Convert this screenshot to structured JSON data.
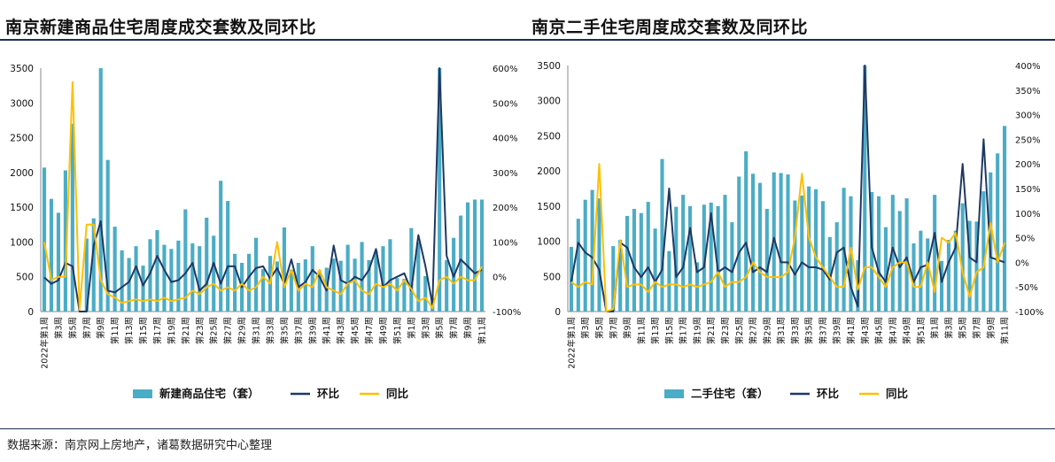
{
  "page": {
    "source": "数据来源：南京网上房地产，诸葛数据研究中心整理"
  },
  "colors": {
    "bar": "#4bacc6",
    "mom": "#1f3864",
    "yoy": "#ffc000",
    "text": "#111111"
  },
  "chart_data": [
    {
      "type": "bar",
      "title": "南京新建商品住宅周度成交套数及同环比",
      "x_labels": [
        "2022年第1周",
        "第3周",
        "第5周",
        "第7周",
        "第9周",
        "第11周",
        "第13周",
        "第15周",
        "第17周",
        "第19周",
        "第21周",
        "第23周",
        "第25周",
        "第27周",
        "第29周",
        "第31周",
        "第33周",
        "第35周",
        "第37周",
        "第39周",
        "第41周",
        "第43周",
        "第45周",
        "第47周",
        "第49周",
        "第51周",
        "第1周",
        "第3周",
        "第5周",
        "第7周",
        "第9周",
        "第11周"
      ],
      "categories_count": 63,
      "ylim_left": [
        0,
        3500
      ],
      "yticks_left": [
        "0",
        "500",
        "1000",
        "1500",
        "2000",
        "2500",
        "3000",
        "3500"
      ],
      "ylim_right": [
        -100,
        600
      ],
      "yticks_right": [
        "-100%",
        "0%",
        "100%",
        "200%",
        "300%",
        "400%",
        "500%",
        "600%"
      ],
      "legend": [
        "新建商品住宅（套）",
        "环比",
        "同比"
      ],
      "legend_position": "bottom",
      "series": [
        {
          "name": "新建商品住宅（套）",
          "kind": "bar",
          "axis": "left",
          "values": [
            2070,
            1620,
            1420,
            2030,
            2700,
            0,
            1050,
            1340,
            3500,
            2180,
            1220,
            880,
            770,
            940,
            660,
            1040,
            1170,
            960,
            900,
            1020,
            1470,
            980,
            940,
            1350,
            1090,
            1880,
            1590,
            830,
            700,
            830,
            1060,
            610,
            800,
            720,
            1210,
            600,
            700,
            750,
            940,
            590,
            630,
            760,
            730,
            960,
            760,
            1000,
            740,
            870,
            940,
            1040,
            480,
            470,
            1200,
            1000,
            510,
            190,
            3500,
            740,
            1060,
            1380,
            1570,
            1610,
            1610
          ]
        },
        {
          "name": "环比",
          "kind": "line",
          "axis": "right",
          "values": [
            -2,
            -20,
            -10,
            40,
            30,
            -100,
            -100,
            90,
            160,
            -40,
            -45,
            -30,
            -15,
            30,
            -25,
            10,
            60,
            20,
            -15,
            -10,
            10,
            40,
            -40,
            -20,
            40,
            -20,
            30,
            30,
            -30,
            0,
            25,
            30,
            -5,
            25,
            -20,
            50,
            -30,
            -15,
            20,
            0,
            -40,
            90,
            -10,
            -20,
            0,
            -10,
            20,
            80,
            -30,
            -10,
            0,
            10,
            -40,
            120,
            30,
            -80,
            600,
            60,
            0,
            50,
            30,
            10,
            20
          ]
        },
        {
          "name": "同比",
          "kind": "line",
          "axis": "right",
          "values": [
            100,
            -10,
            0,
            0,
            560,
            -95,
            150,
            150,
            -10,
            -50,
            -60,
            -75,
            -70,
            -65,
            -70,
            -65,
            -70,
            -60,
            -70,
            -65,
            -60,
            -40,
            -50,
            -30,
            -20,
            -40,
            -30,
            -40,
            -20,
            -40,
            -30,
            0,
            -20,
            100,
            -30,
            20,
            -40,
            -20,
            -30,
            20,
            -30,
            -40,
            -50,
            -20,
            -10,
            -40,
            -50,
            -20,
            -30,
            -20,
            -40,
            -10,
            -35,
            -70,
            -60,
            -90,
            -10,
            0,
            -20,
            0,
            -10,
            -10,
            30
          ]
        }
      ]
    },
    {
      "type": "bar",
      "title": "南京二手住宅周度成交套数及同环比",
      "x_labels": [
        "2022年第1周",
        "第3周",
        "第5周",
        "第7周",
        "第9周",
        "第11周",
        "第13周",
        "第15周",
        "第17周",
        "第19周",
        "第21周",
        "第23周",
        "第25周",
        "第27周",
        "第29周",
        "第31周",
        "第33周",
        "第35周",
        "第37周",
        "第39周",
        "第41周",
        "第43周",
        "第45周",
        "第47周",
        "第49周",
        "第51周",
        "第1周",
        "第3周",
        "第5周",
        "第7周",
        "第9周",
        "第11周"
      ],
      "categories_count": 63,
      "ylim_left": [
        0,
        3500
      ],
      "yticks_left": [
        "0",
        "500",
        "1000",
        "1500",
        "2000",
        "2500",
        "3000",
        "3500"
      ],
      "ylim_right": [
        -100,
        400
      ],
      "yticks_right": [
        "-100%",
        "-50%",
        "0%",
        "50%",
        "100%",
        "150%",
        "200%",
        "250%",
        "300%",
        "350%",
        "400%"
      ],
      "legend": [
        "二手住宅（套）",
        "环比",
        "同比"
      ],
      "legend_position": "bottom",
      "series": [
        {
          "name": "二手住宅（套）",
          "kind": "bar",
          "axis": "left",
          "values": [
            920,
            1320,
            1590,
            1730,
            1610,
            0,
            930,
            1020,
            1360,
            1460,
            1400,
            1560,
            1180,
            2170,
            860,
            1490,
            1660,
            1500,
            700,
            1520,
            1550,
            1500,
            1660,
            1270,
            1920,
            2280,
            1960,
            1830,
            1460,
            1980,
            1970,
            1950,
            1580,
            1650,
            1780,
            1740,
            1570,
            1060,
            1270,
            1760,
            1640,
            730,
            3500,
            1700,
            1640,
            1200,
            1660,
            1430,
            1610,
            970,
            1150,
            1040,
            1660,
            720,
            1020,
            1150,
            1540,
            1290,
            1280,
            1710,
            1980,
            2250,
            2640
          ]
        },
        {
          "name": "环比",
          "kind": "line",
          "axis": "right",
          "values": [
            -40,
            40,
            20,
            10,
            -15,
            -100,
            -100,
            40,
            30,
            -10,
            -30,
            -10,
            -40,
            -15,
            150,
            -30,
            -10,
            70,
            -20,
            -10,
            100,
            -20,
            -10,
            -20,
            20,
            40,
            -20,
            -10,
            -20,
            50,
            0,
            0,
            -25,
            0,
            -10,
            -10,
            -15,
            -35,
            20,
            30,
            -50,
            -90,
            400,
            30,
            -20,
            -40,
            30,
            -10,
            10,
            -40,
            -10,
            -5,
            60,
            -40,
            0,
            30,
            200,
            10,
            0,
            250,
            10,
            5,
            0
          ]
        },
        {
          "name": "同比",
          "kind": "line",
          "axis": "right",
          "values": [
            -40,
            -50,
            -40,
            -45,
            200,
            -100,
            -95,
            45,
            -50,
            -45,
            -45,
            -60,
            -40,
            -50,
            -45,
            -45,
            -50,
            -45,
            -50,
            -45,
            -40,
            -20,
            -50,
            -40,
            -40,
            -30,
            0,
            -20,
            -30,
            -30,
            -30,
            -20,
            50,
            180,
            50,
            10,
            -10,
            -30,
            -50,
            -50,
            30,
            -55,
            -10,
            -10,
            -30,
            -50,
            -10,
            0,
            0,
            -50,
            -50,
            0,
            -60,
            50,
            40,
            60,
            -20,
            -70,
            -20,
            -10,
            80,
            0,
            40
          ]
        }
      ]
    }
  ]
}
